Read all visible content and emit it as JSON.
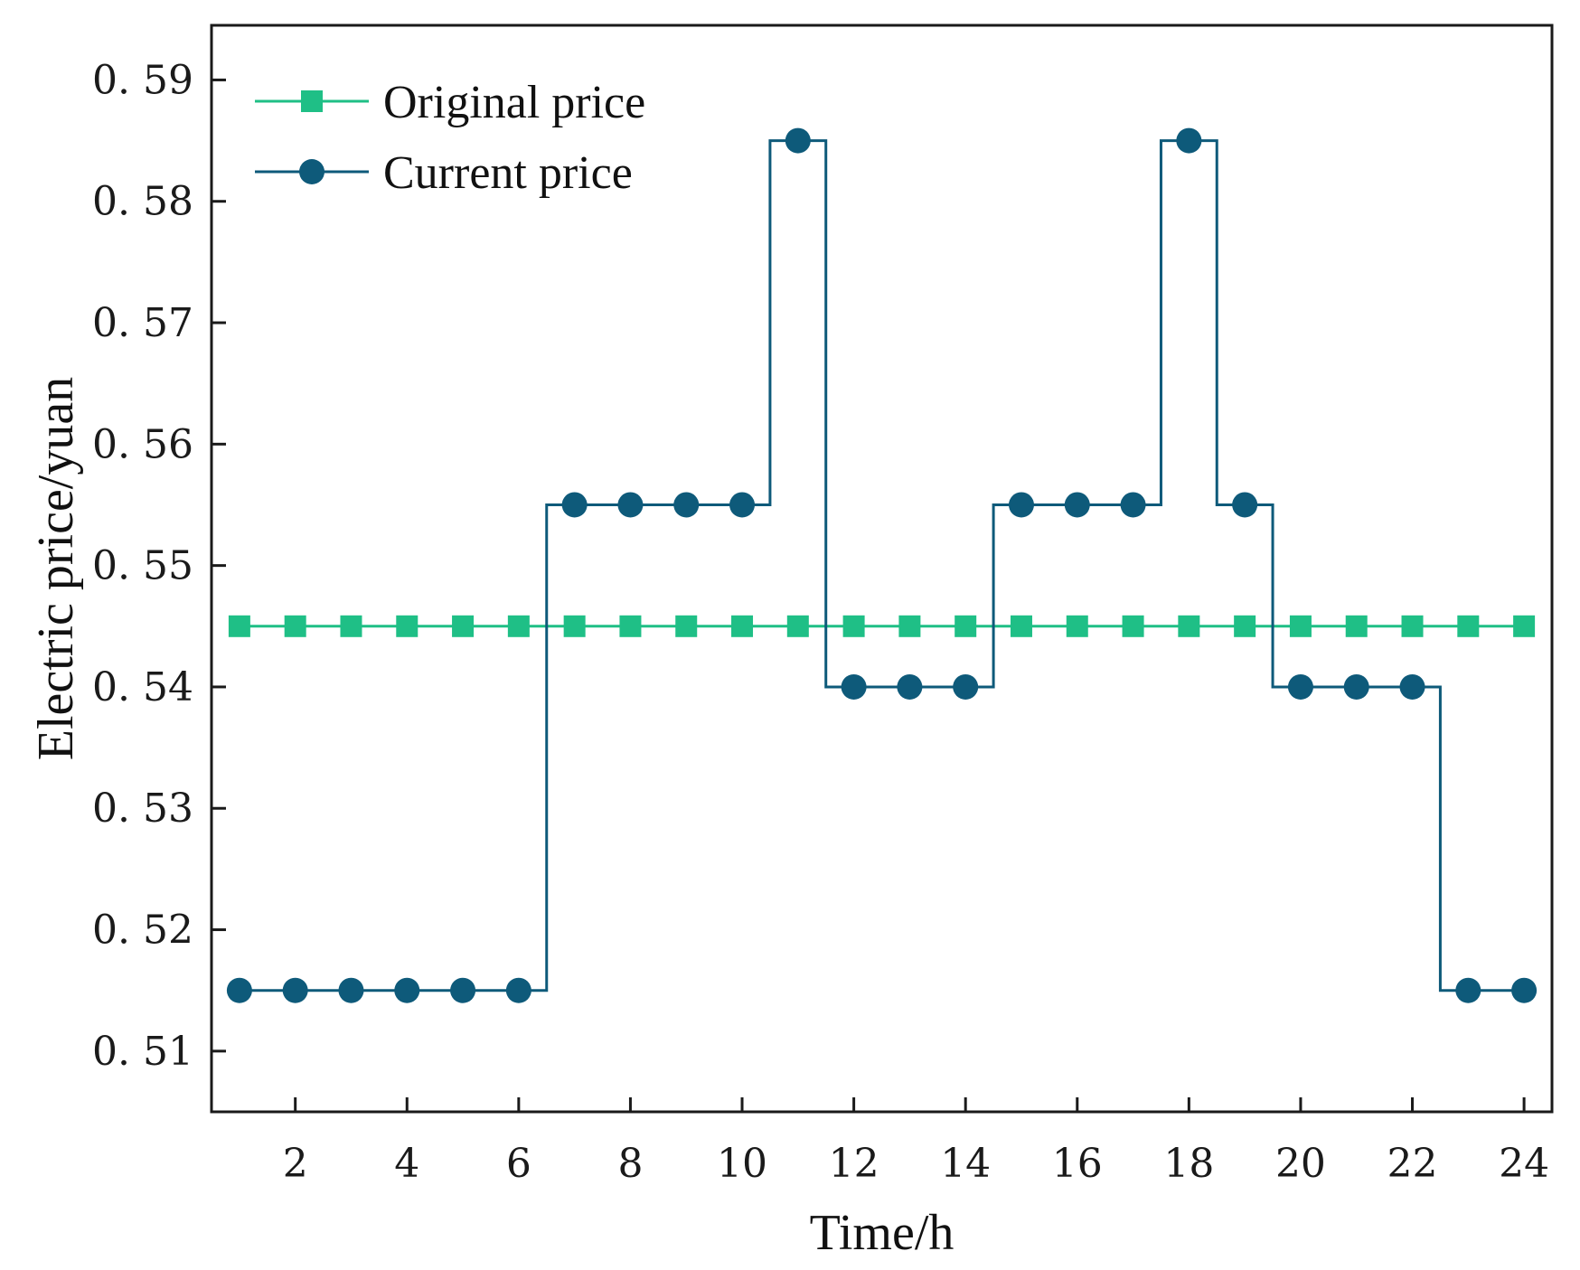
{
  "chart_data": {
    "type": "line",
    "step": "mid",
    "xlabel": "Time/h",
    "ylabel": "Electric price/yuan",
    "xlim": [
      0.5,
      24.5
    ],
    "ylim": [
      0.505,
      0.5945
    ],
    "xticks": [
      2,
      4,
      6,
      8,
      10,
      12,
      14,
      16,
      18,
      20,
      22,
      24
    ],
    "xtick_labels": [
      "2",
      "4",
      "6",
      "8",
      "10",
      "12",
      "14",
      "16",
      "18",
      "20",
      "22",
      "24"
    ],
    "yticks": [
      0.51,
      0.52,
      0.53,
      0.54,
      0.55,
      0.56,
      0.57,
      0.58,
      0.59
    ],
    "ytick_labels": [
      "0. 51",
      "0. 52",
      "0. 53",
      "0. 54",
      "0. 55",
      "0. 56",
      "0. 57",
      "0. 58",
      "0. 59"
    ],
    "grid": false,
    "legend_position": "top-left",
    "x": [
      1,
      2,
      3,
      4,
      5,
      6,
      7,
      8,
      9,
      10,
      11,
      12,
      13,
      14,
      15,
      16,
      17,
      18,
      19,
      20,
      21,
      22,
      23,
      24
    ],
    "series": [
      {
        "name": "Original price",
        "marker": "square",
        "color": "#1fbf86",
        "values": [
          0.545,
          0.545,
          0.545,
          0.545,
          0.545,
          0.545,
          0.545,
          0.545,
          0.545,
          0.545,
          0.545,
          0.545,
          0.545,
          0.545,
          0.545,
          0.545,
          0.545,
          0.545,
          0.545,
          0.545,
          0.545,
          0.545,
          0.545,
          0.545
        ]
      },
      {
        "name": "Current price",
        "marker": "circle",
        "color": "#0e5a7a",
        "values": [
          0.515,
          0.515,
          0.515,
          0.515,
          0.515,
          0.515,
          0.555,
          0.555,
          0.555,
          0.555,
          0.585,
          0.54,
          0.54,
          0.54,
          0.555,
          0.555,
          0.555,
          0.585,
          0.555,
          0.54,
          0.54,
          0.54,
          0.515,
          0.515
        ]
      }
    ]
  }
}
